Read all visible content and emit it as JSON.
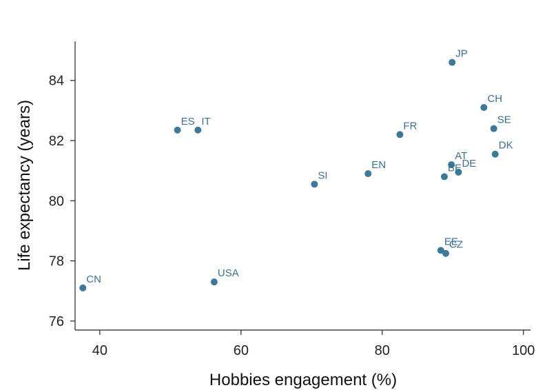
{
  "chart_data": {
    "type": "scatter",
    "xlabel": "Hobbies engagement (%)",
    "ylabel": "Life expectancy (years)",
    "xlim": [
      36.5,
      101
    ],
    "ylim": [
      75.7,
      85.3
    ],
    "xticks": [
      40,
      60,
      80,
      100
    ],
    "yticks": [
      76,
      78,
      80,
      82,
      84
    ],
    "grid": false,
    "marker_color": "#3d7a9a",
    "label_color": "#3a6f8f",
    "points": [
      {
        "label": "JP",
        "x": 89.9,
        "y": 84.6
      },
      {
        "label": "CH",
        "x": 94.4,
        "y": 83.1
      },
      {
        "label": "SE",
        "x": 95.8,
        "y": 82.4
      },
      {
        "label": "ES",
        "x": 51.0,
        "y": 82.35
      },
      {
        "label": "IT",
        "x": 53.9,
        "y": 82.35
      },
      {
        "label": "FR",
        "x": 82.5,
        "y": 82.2
      },
      {
        "label": "DK",
        "x": 96.0,
        "y": 81.55
      },
      {
        "label": "AT",
        "x": 89.8,
        "y": 81.2
      },
      {
        "label": "DE",
        "x": 90.8,
        "y": 80.95
      },
      {
        "label": "BE",
        "x": 88.8,
        "y": 80.8
      },
      {
        "label": "EN",
        "x": 78.0,
        "y": 80.9
      },
      {
        "label": "SI",
        "x": 70.4,
        "y": 80.55
      },
      {
        "label": "EE",
        "x": 88.3,
        "y": 78.35
      },
      {
        "label": "CZ",
        "x": 89.0,
        "y": 78.25
      },
      {
        "label": "USA",
        "x": 56.2,
        "y": 77.3
      },
      {
        "label": "CN",
        "x": 37.6,
        "y": 77.1
      }
    ]
  }
}
